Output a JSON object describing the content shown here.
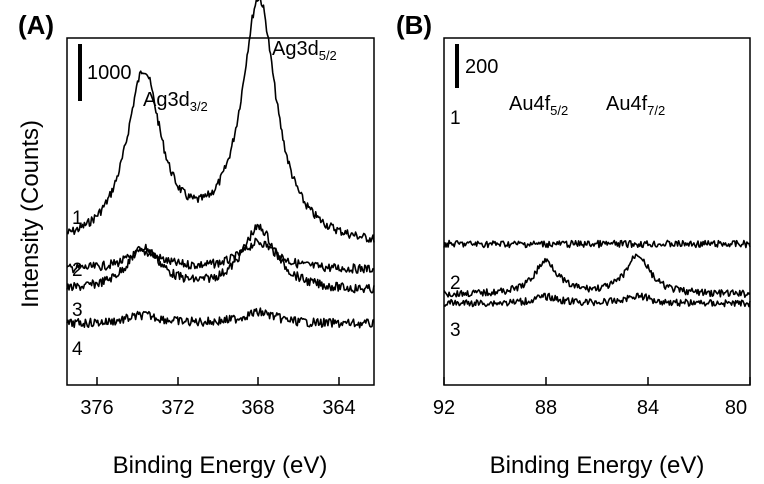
{
  "y_axis_title": "Intensity (Counts)",
  "chart_data": [
    {
      "type": "line",
      "panel_label": "(A)",
      "xlabel": "Binding Energy (eV)",
      "ylabel": "Intensity (Counts)",
      "xlim": [
        378,
        362
      ],
      "x_reversed": true,
      "x_ticks": [
        "376",
        "372",
        "368",
        "364"
      ],
      "x_tick_values": [
        376,
        372,
        368,
        364
      ],
      "scale_bar": {
        "label": "1000",
        "counts": 1000
      },
      "peak_annotations": [
        {
          "base": "Ag3d",
          "sub": "3/2",
          "x": 374.0
        },
        {
          "base": "Ag3d",
          "sub": "5/2",
          "x": 368.0
        }
      ],
      "series": [
        {
          "name": "1",
          "baseline": 380,
          "peaks": [
            {
              "x": 374.0,
              "height": 3000
            },
            {
              "x": 368.0,
              "height": 4300
            }
          ]
        },
        {
          "name": "2",
          "baseline": 0,
          "peaks": [
            {
              "x": 374.0,
              "height": 300
            },
            {
              "x": 368.0,
              "height": 480
            }
          ]
        },
        {
          "name": "3",
          "baseline": -380,
          "peaks": [
            {
              "x": 374.0,
              "height": 740
            },
            {
              "x": 368.0,
              "height": 1100
            }
          ]
        },
        {
          "name": "4",
          "baseline": -950,
          "peaks": [
            {
              "x": 374.0,
              "height": 150
            },
            {
              "x": 368.0,
              "height": 200
            }
          ]
        }
      ]
    },
    {
      "type": "line",
      "panel_label": "(B)",
      "xlabel": "Binding Energy (eV)",
      "ylabel": "",
      "xlim": [
        92,
        80
      ],
      "x_reversed": true,
      "x_ticks": [
        "92",
        "88",
        "84",
        "80"
      ],
      "x_tick_values": [
        92,
        88,
        84,
        80
      ],
      "scale_bar": {
        "label": "200",
        "counts": 200
      },
      "peak_annotations": [
        {
          "base": "Au4f",
          "sub": "5/2",
          "x": 88.0
        },
        {
          "base": "Au4f",
          "sub": "7/2",
          "x": 84.4
        }
      ],
      "series": [
        {
          "name": "1",
          "baseline": 250,
          "peaks": []
        },
        {
          "name": "2",
          "baseline": 20,
          "peaks": [
            {
              "x": 88.0,
              "height": 150
            },
            {
              "x": 84.4,
              "height": 180
            }
          ]
        },
        {
          "name": "3",
          "baseline": -20,
          "peaks": [
            {
              "x": 88.0,
              "height": 30
            },
            {
              "x": 84.4,
              "height": 35
            }
          ]
        }
      ]
    }
  ]
}
